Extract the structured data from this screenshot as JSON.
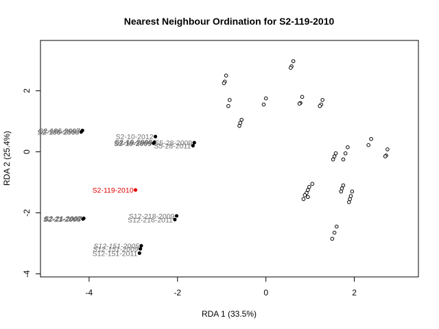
{
  "chart_data": {
    "type": "scatter",
    "title": "Nearest Neighbour Ordination for S2-119-2010",
    "xlabel": "RDA 1 (33.5%)",
    "ylabel": "RDA 2 (25.4%)",
    "xlim": [
      -5.1,
      3.45
    ],
    "ylim": [
      -4.1,
      3.65
    ],
    "x_ticks": [
      -4,
      -2,
      0,
      2
    ],
    "y_ticks": [
      -4,
      -2,
      0,
      2
    ],
    "grid": false,
    "colors": {
      "focal": "#e00000",
      "neighbour": "#000000",
      "label": "#707070"
    },
    "focal": {
      "label": "S2-119-2010",
      "x": -2.95,
      "y": -1.25
    },
    "labeled_points": [
      {
        "label": "S2-186-2007",
        "x": -4.15,
        "y": 0.7,
        "italic": false,
        "bold": true
      },
      {
        "label": "S2-186-2008",
        "x": -4.18,
        "y": 0.65,
        "italic": false,
        "bold": true
      },
      {
        "label": "S2-10-2012",
        "x": -2.5,
        "y": 0.5,
        "italic": false,
        "bold": false
      },
      {
        "label": "S2-10-2008",
        "x": -2.52,
        "y": 0.32,
        "italic": false,
        "bold": true
      },
      {
        "label": "S2-10-2009",
        "x": -2.54,
        "y": 0.28,
        "italic": false,
        "bold": true
      },
      {
        "label": "S5-28-2009",
        "x": -1.62,
        "y": 0.3,
        "italic": false,
        "bold": false
      },
      {
        "label": "S5-28-2011",
        "x": -1.65,
        "y": 0.2,
        "italic": false,
        "bold": false
      },
      {
        "label": "S2-21-2007",
        "x": -4.12,
        "y": -2.18,
        "italic": true,
        "bold": true
      },
      {
        "label": "S2-21-2008",
        "x": -4.14,
        "y": -2.2,
        "italic": true,
        "bold": true
      },
      {
        "label": "S12-218-2009",
        "x": -2.02,
        "y": -2.1,
        "italic": false,
        "bold": false
      },
      {
        "label": "S12-216-2011",
        "x": -2.06,
        "y": -2.22,
        "italic": false,
        "bold": false
      },
      {
        "label": "S12-151-2005",
        "x": -2.82,
        "y": -3.08,
        "italic": true,
        "bold": false
      },
      {
        "label": "S12-151-2009",
        "x": -2.84,
        "y": -3.18,
        "italic": true,
        "bold": false
      },
      {
        "label": "S12-151-2011",
        "x": -2.86,
        "y": -3.32,
        "italic": false,
        "bold": false
      }
    ],
    "other_points": [
      {
        "x": -0.9,
        "y": 2.5
      },
      {
        "x": -0.93,
        "y": 2.3
      },
      {
        "x": -0.95,
        "y": 2.25
      },
      {
        "x": -0.82,
        "y": 1.7
      },
      {
        "x": -0.85,
        "y": 1.5
      },
      {
        "x": -0.55,
        "y": 1.05
      },
      {
        "x": -0.58,
        "y": 0.95
      },
      {
        "x": -0.6,
        "y": 0.85
      },
      {
        "x": 0.0,
        "y": 1.75
      },
      {
        "x": -0.05,
        "y": 1.55
      },
      {
        "x": 0.62,
        "y": 2.97
      },
      {
        "x": 0.58,
        "y": 2.8
      },
      {
        "x": 0.56,
        "y": 2.75
      },
      {
        "x": 0.82,
        "y": 1.8
      },
      {
        "x": 0.78,
        "y": 1.6
      },
      {
        "x": 0.76,
        "y": 1.58
      },
      {
        "x": 1.28,
        "y": 1.7
      },
      {
        "x": 1.25,
        "y": 1.55
      },
      {
        "x": 1.22,
        "y": 1.5
      },
      {
        "x": 1.58,
        "y": -0.05
      },
      {
        "x": 1.55,
        "y": -0.15
      },
      {
        "x": 1.52,
        "y": -0.25
      },
      {
        "x": 1.85,
        "y": 0.15
      },
      {
        "x": 1.8,
        "y": -0.05
      },
      {
        "x": 1.75,
        "y": -0.25
      },
      {
        "x": 2.38,
        "y": 0.42
      },
      {
        "x": 2.32,
        "y": 0.22
      },
      {
        "x": 2.75,
        "y": 0.08
      },
      {
        "x": 2.72,
        "y": -0.12
      },
      {
        "x": 2.7,
        "y": -0.15
      },
      {
        "x": 1.05,
        "y": -1.05
      },
      {
        "x": 0.98,
        "y": -1.15
      },
      {
        "x": 0.95,
        "y": -1.25
      },
      {
        "x": 0.92,
        "y": -1.35
      },
      {
        "x": 0.88,
        "y": -1.42
      },
      {
        "x": 0.95,
        "y": -1.48
      },
      {
        "x": 0.85,
        "y": -1.55
      },
      {
        "x": 1.75,
        "y": -1.1
      },
      {
        "x": 1.72,
        "y": -1.2
      },
      {
        "x": 1.7,
        "y": -1.3
      },
      {
        "x": 1.95,
        "y": -1.3
      },
      {
        "x": 1.92,
        "y": -1.45
      },
      {
        "x": 1.9,
        "y": -1.55
      },
      {
        "x": 1.88,
        "y": -1.65
      },
      {
        "x": 1.6,
        "y": -2.45
      },
      {
        "x": 1.55,
        "y": -2.65
      },
      {
        "x": 1.5,
        "y": -2.85
      }
    ]
  }
}
